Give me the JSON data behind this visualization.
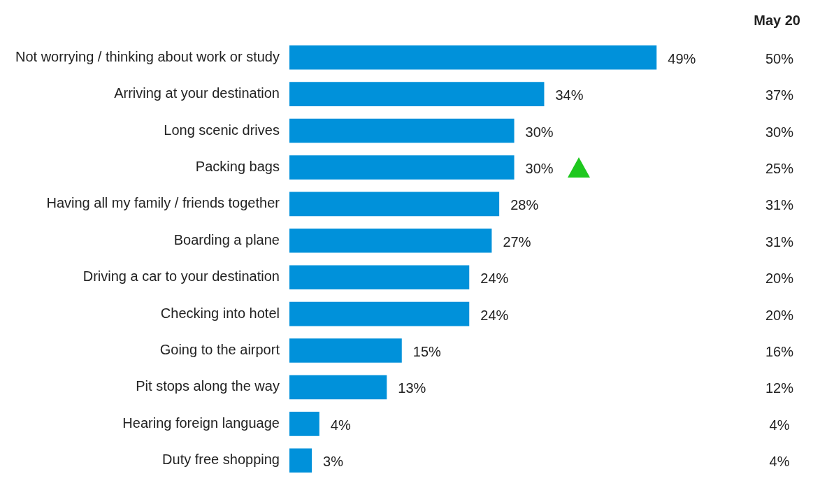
{
  "chart_data": {
    "type": "bar",
    "orientation": "horizontal",
    "categories": [
      "Not worrying / thinking about work or study",
      "Arriving at your destination",
      "Long scenic drives",
      "Packing bags",
      "Having all my family / friends together",
      "Boarding a plane",
      "Driving a car to your destination",
      "Checking into hotel",
      "Going to the airport",
      "Pit stops along the way",
      "Hearing foreign language",
      "Duty free shopping"
    ],
    "series": [
      {
        "color": "#0091da",
        "values": [
          49,
          34,
          30,
          30,
          28,
          27,
          24,
          24,
          15,
          13,
          4,
          3
        ],
        "value_labels": [
          "49%",
          "34%",
          "30%",
          "30%",
          "28%",
          "27%",
          "24%",
          "24%",
          "15%",
          "13%",
          "4%",
          "3%"
        ]
      }
    ],
    "tick_labels": "y",
    "grid": false,
    "legend": false,
    "annotations": [
      "May 20",
      "50%",
      "37%",
      "30%",
      "25%",
      "31%",
      "31%",
      "20%",
      "20%",
      "16%",
      "12%",
      "4%",
      "4%"
    ]
  }
}
